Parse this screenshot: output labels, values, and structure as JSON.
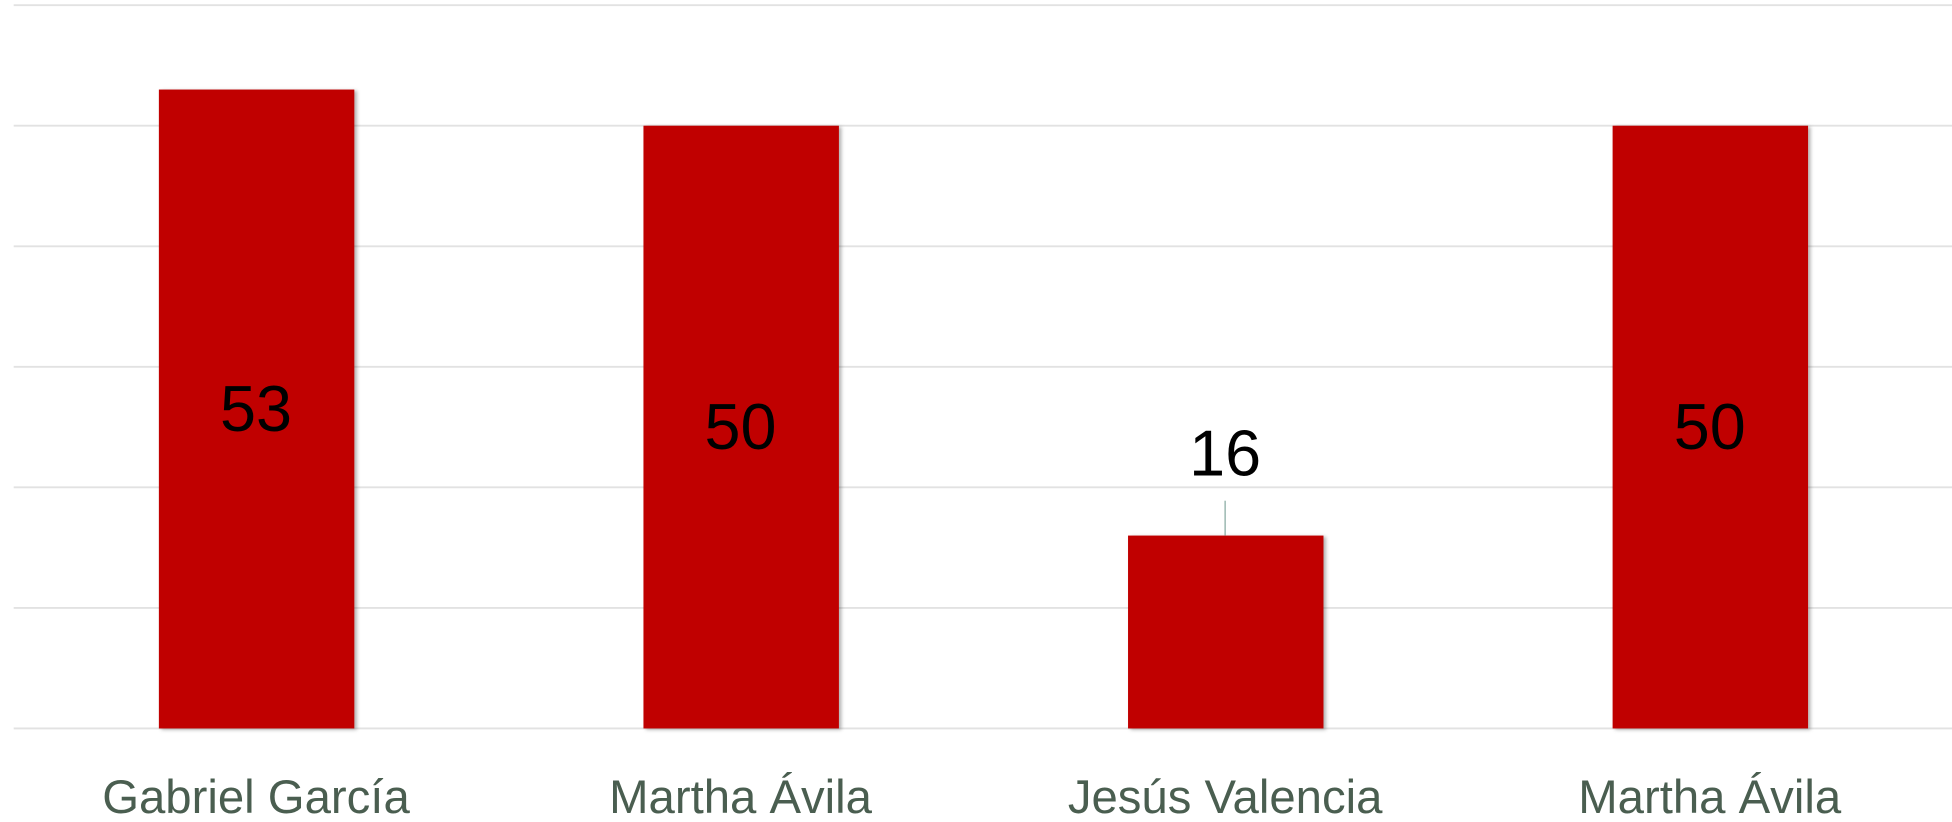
{
  "chart_data": {
    "type": "bar",
    "categories": [
      "Gabriel García",
      "Martha Ávila",
      "Jesús Valencia",
      "Martha Ávila"
    ],
    "values": [
      53,
      50,
      16,
      50
    ],
    "color": "#c00000",
    "ylim": [
      0,
      60
    ],
    "yticks": [
      0,
      10,
      20,
      30,
      40,
      50,
      60
    ],
    "grid": true
  }
}
